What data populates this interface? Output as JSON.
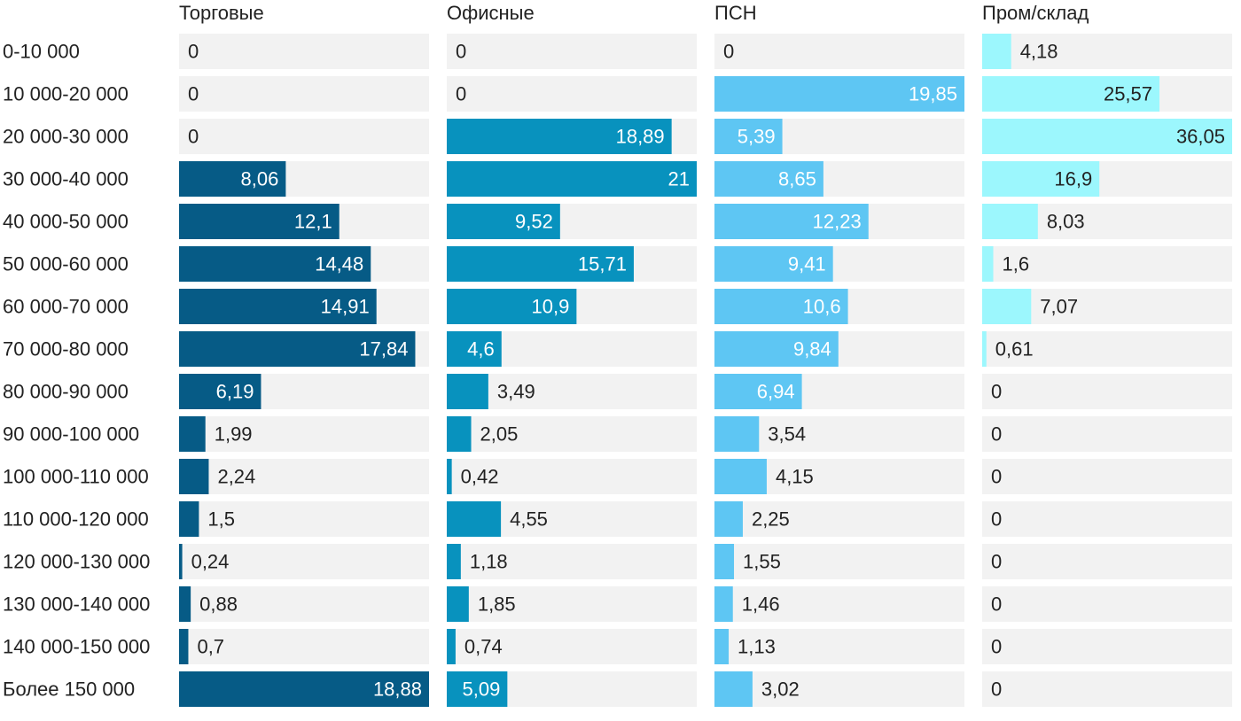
{
  "chart_data": {
    "type": "bar",
    "orientation": "horizontal",
    "layout": "small-multiples",
    "categories": [
      "0-10 000",
      "10 000-20 000",
      "20 000-30 000",
      "30 000-40 000",
      "40 000-50 000",
      "50 000-60 000",
      "60 000-70 000",
      "70 000-80 000",
      "80 000-90 000",
      "90 000-100 000",
      "100 000-110 000",
      "110 000-120 000",
      "120 000-130 000",
      "130 000-140 000",
      "140 000-150 000",
      "Более 150 000"
    ],
    "series": [
      {
        "name": "Торговые",
        "color": "#065b86",
        "max": 18.88,
        "values": [
          0,
          0,
          0,
          8.06,
          12.1,
          14.48,
          14.91,
          17.84,
          6.19,
          1.99,
          2.24,
          1.5,
          0.24,
          0.88,
          0.7,
          18.88
        ],
        "labels": [
          "0",
          "0",
          "0",
          "8,06",
          "12,1",
          "14,48",
          "14,91",
          "17,84",
          "6,19",
          "1,99",
          "2,24",
          "1,5",
          "0,24",
          "0,88",
          "0,7",
          "18,88"
        ]
      },
      {
        "name": "Офисные",
        "color": "#0892be",
        "max": 21,
        "values": [
          0,
          0,
          18.89,
          21,
          9.52,
          15.71,
          10.9,
          4.6,
          3.49,
          2.05,
          0.42,
          4.55,
          1.18,
          1.85,
          0.74,
          5.09
        ],
        "labels": [
          "0",
          "0",
          "18,89",
          "21",
          "9,52",
          "15,71",
          "10,9",
          "4,6",
          "3,49",
          "2,05",
          "0,42",
          "4,55",
          "1,18",
          "1,85",
          "0,74",
          "5,09"
        ]
      },
      {
        "name": "ПСН",
        "color": "#5ec6f3",
        "max": 19.85,
        "values": [
          0,
          19.85,
          5.39,
          8.65,
          12.23,
          9.41,
          10.6,
          9.84,
          6.94,
          3.54,
          4.15,
          2.25,
          1.55,
          1.46,
          1.13,
          3.02
        ],
        "labels": [
          "0",
          "19,85",
          "5,39",
          "8,65",
          "12,23",
          "9,41",
          "10,6",
          "9,84",
          "6,94",
          "3,54",
          "4,15",
          "2,25",
          "1,55",
          "1,46",
          "1,13",
          "3,02"
        ]
      },
      {
        "name": "Пром/склад",
        "color": "#9cf7fd",
        "max": 36.05,
        "values": [
          4.18,
          25.57,
          36.05,
          16.9,
          8.03,
          1.6,
          7.07,
          0.61,
          0,
          0,
          0,
          0,
          0,
          0,
          0,
          0
        ],
        "labels": [
          "4,18",
          "25,57",
          "36,05",
          "16,9",
          "8,03",
          "1,6",
          "7,07",
          "0,61",
          "0",
          "0",
          "0",
          "0",
          "0",
          "0",
          "0",
          "0"
        ]
      }
    ],
    "colors": {
      "track": "#f2f2f2",
      "label_dark": "#222222",
      "label_on_bar": "#ffffff"
    }
  }
}
